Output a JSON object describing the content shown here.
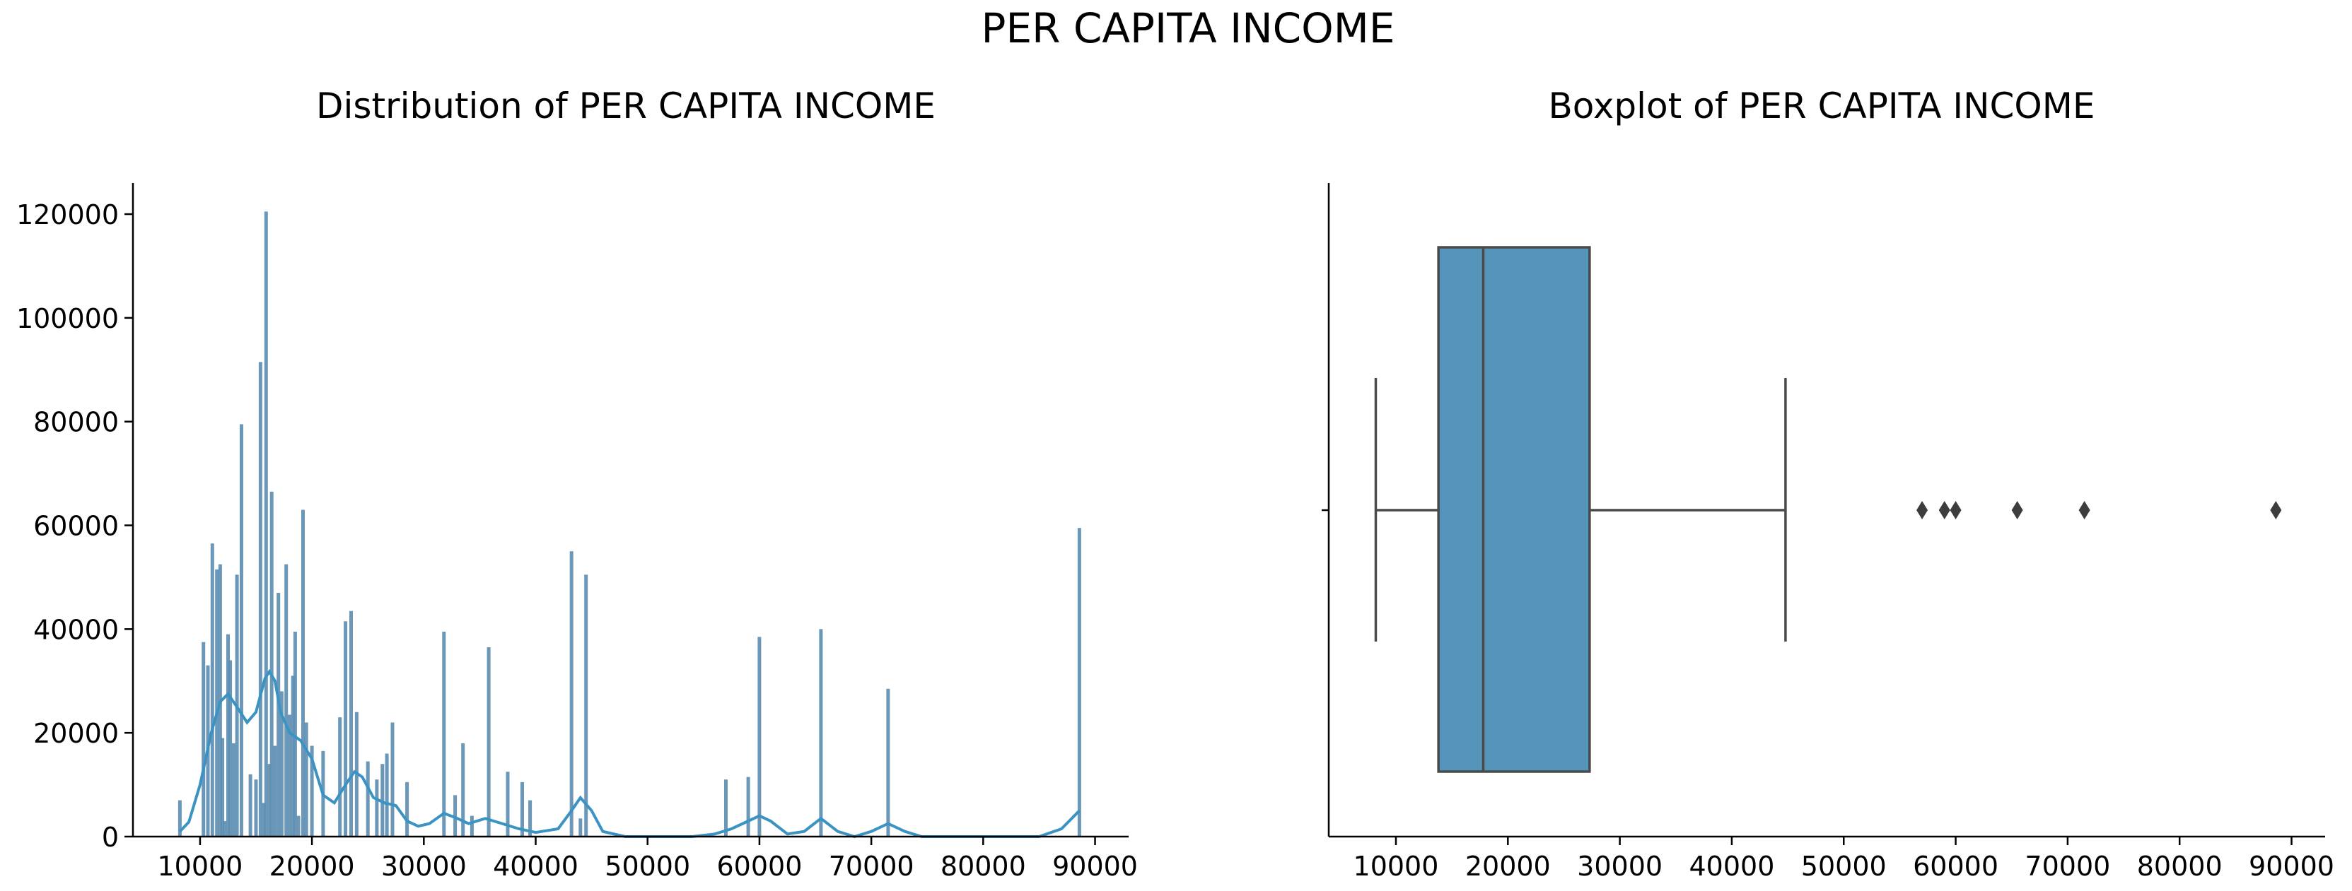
{
  "figure": {
    "suptitle": "PER CAPITA INCOME"
  },
  "style": {
    "bar_color": "#5b8db0",
    "kde_color": "#3a93c3",
    "box_fill": "#5594bb",
    "box_line": "#4a4a4a",
    "outlier_color": "#3d3d3d",
    "axis_color": "#000000"
  },
  "chart_data": [
    {
      "type": "histogram",
      "title": "Distribution of PER CAPITA INCOME",
      "xlabel": "",
      "ylabel": "",
      "xlim": [
        4000,
        93000
      ],
      "ylim": [
        0,
        126000
      ],
      "xticks": [
        10000,
        20000,
        30000,
        40000,
        50000,
        60000,
        70000,
        80000,
        90000
      ],
      "yticks": [
        0,
        20000,
        40000,
        60000,
        80000,
        100000,
        120000
      ],
      "grid": false,
      "bars": [
        [
          8200,
          7000
        ],
        [
          10300,
          37500
        ],
        [
          10700,
          33000
        ],
        [
          11100,
          56500
        ],
        [
          11500,
          51500
        ],
        [
          11800,
          52500
        ],
        [
          12000,
          19000
        ],
        [
          12200,
          3000
        ],
        [
          12500,
          39000
        ],
        [
          12700,
          34000
        ],
        [
          13000,
          18000
        ],
        [
          13300,
          50500
        ],
        [
          13700,
          79500
        ],
        [
          14500,
          12000
        ],
        [
          15000,
          11000
        ],
        [
          15400,
          91500
        ],
        [
          15700,
          6500
        ],
        [
          15900,
          120500
        ],
        [
          16200,
          14000
        ],
        [
          16400,
          66500
        ],
        [
          16700,
          17500
        ],
        [
          17000,
          47000
        ],
        [
          17300,
          28000
        ],
        [
          17700,
          52500
        ],
        [
          18000,
          23500
        ],
        [
          18300,
          31000
        ],
        [
          18500,
          39500
        ],
        [
          18800,
          4000
        ],
        [
          19200,
          63000
        ],
        [
          19500,
          22000
        ],
        [
          20000,
          17500
        ],
        [
          21000,
          16500
        ],
        [
          22500,
          23000
        ],
        [
          23000,
          41500
        ],
        [
          23500,
          43500
        ],
        [
          24000,
          24000
        ],
        [
          25000,
          14500
        ],
        [
          25800,
          11000
        ],
        [
          26300,
          14000
        ],
        [
          26700,
          16000
        ],
        [
          27200,
          22000
        ],
        [
          28500,
          10500
        ],
        [
          31800,
          39500
        ],
        [
          32800,
          8000
        ],
        [
          33500,
          18000
        ],
        [
          34300,
          4000
        ],
        [
          35800,
          36500
        ],
        [
          37500,
          12500
        ],
        [
          38800,
          10500
        ],
        [
          39500,
          7000
        ],
        [
          43200,
          55000
        ],
        [
          44000,
          3500
        ],
        [
          44500,
          50500
        ],
        [
          57000,
          11000
        ],
        [
          59000,
          11500
        ],
        [
          60000,
          38500
        ],
        [
          65500,
          40000
        ],
        [
          71500,
          28500
        ],
        [
          88600,
          59500
        ]
      ],
      "kde": [
        [
          8200,
          1000
        ],
        [
          9000,
          2800
        ],
        [
          10000,
          10000
        ],
        [
          11000,
          20000
        ],
        [
          11800,
          26000
        ],
        [
          12500,
          27500
        ],
        [
          13300,
          25000
        ],
        [
          14200,
          22000
        ],
        [
          15000,
          24000
        ],
        [
          15800,
          30500
        ],
        [
          16200,
          31800
        ],
        [
          16700,
          30000
        ],
        [
          17200,
          24000
        ],
        [
          18000,
          20000
        ],
        [
          19000,
          18500
        ],
        [
          20000,
          15000
        ],
        [
          21000,
          8000
        ],
        [
          22000,
          6500
        ],
        [
          23000,
          10000
        ],
        [
          23800,
          12500
        ],
        [
          24500,
          11500
        ],
        [
          25500,
          7500
        ],
        [
          26500,
          6500
        ],
        [
          27500,
          6000
        ],
        [
          28500,
          3000
        ],
        [
          29500,
          2000
        ],
        [
          30500,
          2500
        ],
        [
          31800,
          4500
        ],
        [
          33000,
          3500
        ],
        [
          34000,
          2500
        ],
        [
          35500,
          3500
        ],
        [
          37000,
          2500
        ],
        [
          38500,
          1500
        ],
        [
          40000,
          800
        ],
        [
          42000,
          1500
        ],
        [
          43200,
          5000
        ],
        [
          44000,
          7500
        ],
        [
          45000,
          5000
        ],
        [
          46000,
          1000
        ],
        [
          48000,
          0
        ],
        [
          54000,
          0
        ],
        [
          56000,
          500
        ],
        [
          57500,
          1500
        ],
        [
          59000,
          3000
        ],
        [
          60000,
          4000
        ],
        [
          61000,
          3000
        ],
        [
          62500,
          500
        ],
        [
          64000,
          1000
        ],
        [
          65500,
          3500
        ],
        [
          67000,
          1000
        ],
        [
          68500,
          0
        ],
        [
          70000,
          1000
        ],
        [
          71500,
          2500
        ],
        [
          73000,
          1000
        ],
        [
          74500,
          0
        ],
        [
          85000,
          0
        ],
        [
          87000,
          1500
        ],
        [
          88600,
          5000
        ]
      ]
    },
    {
      "type": "boxplot",
      "title": "Boxplot of PER CAPITA INCOME",
      "xlabel": "",
      "ylabel": "",
      "xlim": [
        4000,
        93000
      ],
      "xticks": [
        10000,
        20000,
        30000,
        40000,
        50000,
        60000,
        70000,
        80000,
        90000
      ],
      "grid": false,
      "whisker_low": 8200,
      "q1": 13800,
      "median": 17800,
      "q3": 27300,
      "whisker_high": 44800,
      "outliers": [
        57000,
        59000,
        60000,
        65500,
        71500,
        88600
      ]
    }
  ]
}
